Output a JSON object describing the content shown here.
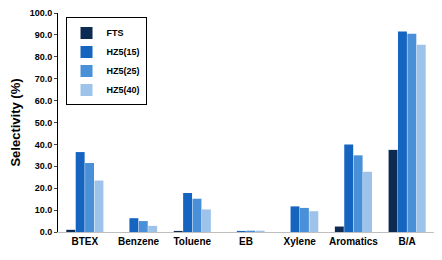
{
  "chart_data": {
    "type": "bar",
    "y_label": "Selectivity (%)",
    "categories": [
      "BTEX",
      "Benzene",
      "Toluene",
      "EB",
      "Xylene",
      "Aromatics",
      "B/A"
    ],
    "series": [
      {
        "name": "FTS",
        "color": "#0d2a52",
        "values": [
          1.0,
          0.0,
          0.5,
          0.0,
          0.0,
          2.5,
          37.5
        ]
      },
      {
        "name": "HZ5(15)",
        "color": "#1565c0",
        "values": [
          36.5,
          6.3,
          17.8,
          0.5,
          11.7,
          40.0,
          91.5
        ]
      },
      {
        "name": "HZ5(25)",
        "color": "#4a90d9",
        "values": [
          31.5,
          5.0,
          15.2,
          0.6,
          11.0,
          35.0,
          90.5
        ]
      },
      {
        "name": "HZ5(40)",
        "color": "#9ec3ea",
        "values": [
          23.5,
          2.8,
          10.3,
          0.6,
          9.5,
          27.5,
          85.5
        ]
      }
    ],
    "ylim": [
      0,
      100
    ],
    "yticks": [
      {
        "value": 0,
        "label": "0.0"
      },
      {
        "value": 10,
        "label": "10.0"
      },
      {
        "value": 20,
        "label": "20.0"
      },
      {
        "value": 30,
        "label": "30.0"
      },
      {
        "value": 40,
        "label": "40.0"
      },
      {
        "value": 50,
        "label": "50.0"
      },
      {
        "value": 60,
        "label": "60.0"
      },
      {
        "value": 70,
        "label": "70.0"
      },
      {
        "value": 80,
        "label": "80.0"
      },
      {
        "value": 90,
        "label": "90.0"
      },
      {
        "value": 100,
        "label": "100.0"
      }
    ],
    "grid": false,
    "legend": "top-left"
  }
}
